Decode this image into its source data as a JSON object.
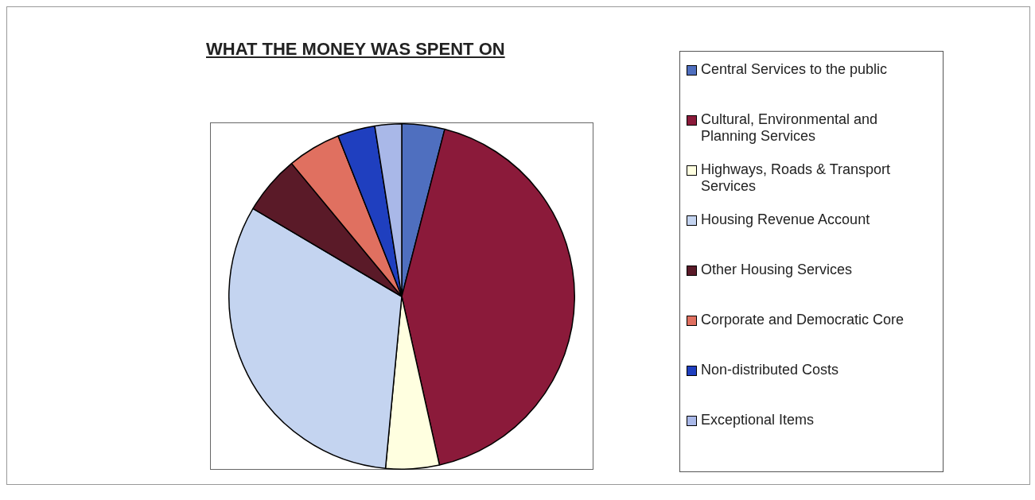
{
  "chart_data": {
    "type": "pie",
    "title": "WHAT THE MONEY WAS SPENT ON",
    "categories": [
      "Central Services to the public",
      "Cultural, Environmental and Planning Services",
      "Highways, Roads & Transport Services",
      "Housing Revenue Account",
      "Other Housing Services",
      "Corporate and Democratic Core",
      "Non-distributed Costs",
      "Exceptional Items"
    ],
    "values": [
      4,
      42.5,
      5,
      32,
      5.5,
      5,
      3.5,
      2.5
    ],
    "colors": [
      "#4f6fbf",
      "#8b1a3a",
      "#ffffe0",
      "#c4d4f0",
      "#5a1a28",
      "#e07060",
      "#1f3fbf",
      "#a9b8e8"
    ],
    "legend": "right"
  }
}
